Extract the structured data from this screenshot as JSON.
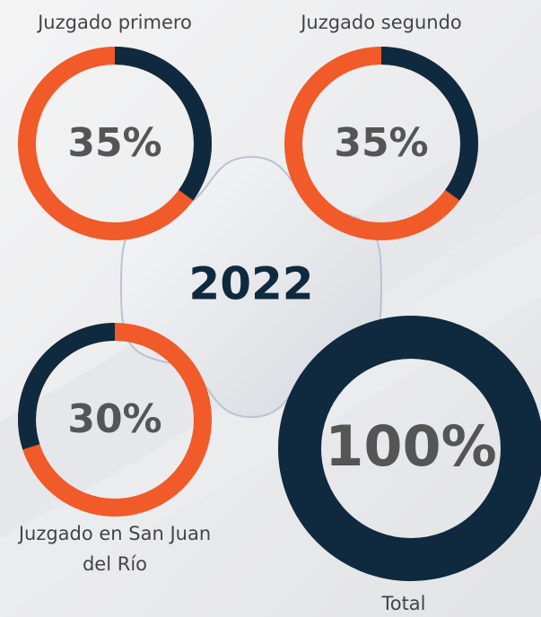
{
  "year": "2022",
  "chart_data": [
    {
      "type": "donut",
      "title": "Juzgado primero",
      "values": [
        35
      ],
      "value_labels": [
        "35%"
      ],
      "color": "#0f2a3f",
      "track_color": "#f15a29",
      "direction": "clockwise"
    },
    {
      "type": "donut",
      "title": "Juzgado segundo",
      "values": [
        35
      ],
      "value_labels": [
        "35%"
      ],
      "color": "#0f2a3f",
      "track_color": "#f15a29",
      "direction": "clockwise"
    },
    {
      "type": "donut",
      "title": "Juzgado en San Juan del Río",
      "values": [
        30
      ],
      "value_labels": [
        "30%"
      ],
      "color": "#0f2a3f",
      "track_color": "#f15a29",
      "direction": "counterclockwise"
    },
    {
      "type": "donut",
      "title": "Total",
      "values": [
        100
      ],
      "value_labels": [
        "100%"
      ],
      "color": "#0f2a3f",
      "direction": "clockwise"
    }
  ]
}
